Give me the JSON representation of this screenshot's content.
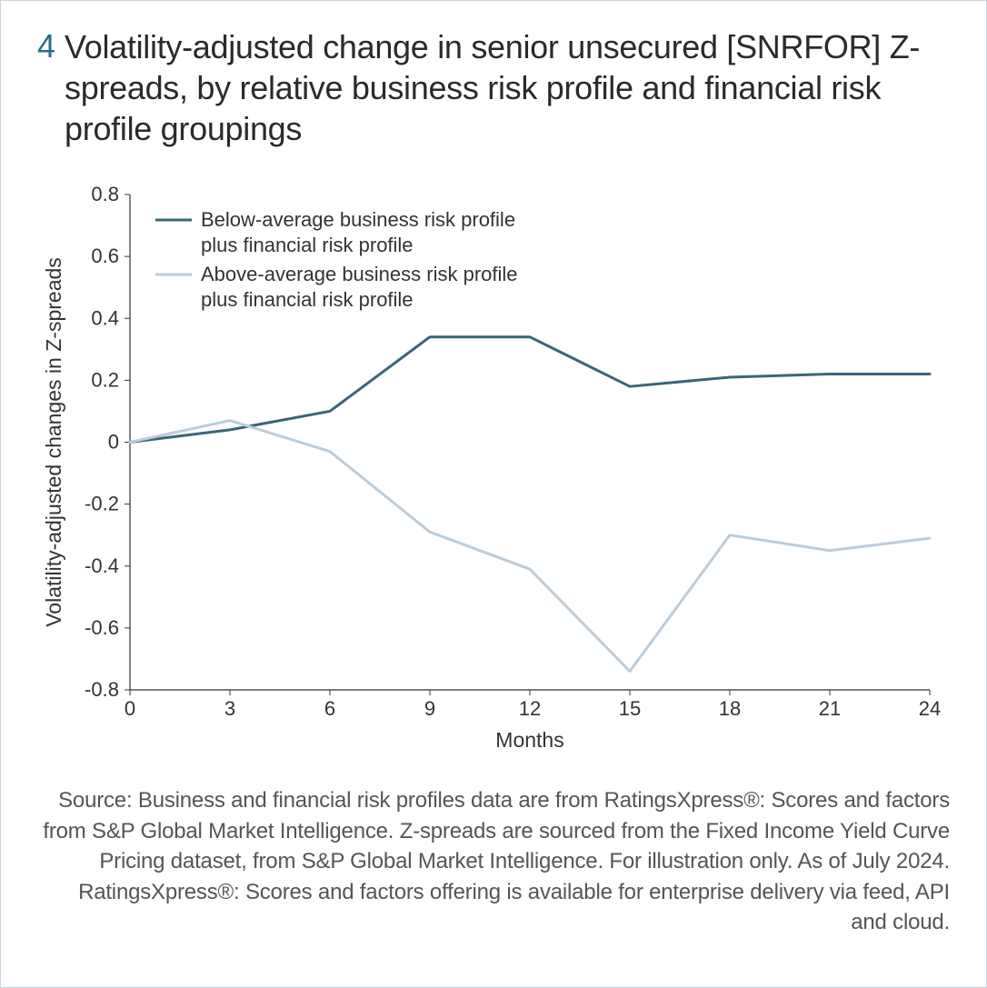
{
  "figure_number": "4",
  "title": "Volatility-adjusted change in senior unsecured [SNRFOR] Z-spreads, by relative business risk profile and financial risk profile groupings",
  "chart": {
    "type": "line",
    "xlabel": "Months",
    "ylabel": "Volatility-adjusted changes in Z-spreads",
    "x_ticks": [
      0,
      3,
      6,
      9,
      12,
      15,
      18,
      21,
      24
    ],
    "y_ticks": [
      -0.8,
      -0.6,
      -0.4,
      -0.2,
      0,
      0.2,
      0.4,
      0.6,
      0.8
    ],
    "xlim": [
      0,
      24
    ],
    "ylim": [
      -0.8,
      0.8
    ],
    "background_color": "#ffffff",
    "axis_color": "#333333",
    "tick_fontsize": 22,
    "label_fontsize": 23,
    "legend_fontsize": 22,
    "line_width": 3,
    "series": [
      {
        "name": "Below-average business risk profile plus financial risk profile",
        "color": "#3a6578",
        "x": [
          0,
          3,
          6,
          9,
          12,
          15,
          18,
          21,
          24
        ],
        "y": [
          0.0,
          0.04,
          0.1,
          0.34,
          0.34,
          0.18,
          0.21,
          0.22,
          0.22
        ]
      },
      {
        "name": "Above-average business risk profile plus financial risk profile",
        "color": "#bcccd9",
        "x": [
          0,
          3,
          6,
          9,
          12,
          15,
          18,
          21,
          24
        ],
        "y": [
          0.0,
          0.07,
          -0.03,
          -0.29,
          -0.41,
          -0.74,
          -0.3,
          -0.35,
          -0.31
        ]
      }
    ],
    "legend": {
      "position": "upper-left-inside",
      "line_length": 40
    }
  },
  "source_note": "Source: Business and financial risk profiles data are from RatingsXpress®: Scores and factors from S&P Global Market Intelligence. Z-spreads are sourced from the Fixed Income Yield Curve Pricing dataset, from S&P Global Market Intelligence. For illustration only. As of July 2024. RatingsXpress®: Scores and factors offering is available for enterprise delivery via feed, API and cloud."
}
